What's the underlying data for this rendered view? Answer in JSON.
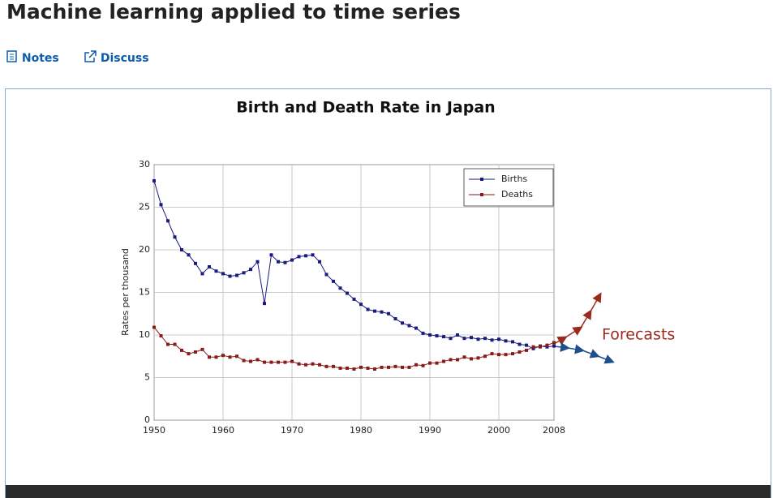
{
  "header": {
    "title": "Machine learning applied to time series",
    "links": [
      "Notes",
      "Discuss"
    ]
  },
  "chart_data": {
    "type": "line",
    "title": "Birth and Death Rate in Japan",
    "y_label": "Rates per thousand",
    "annotation": "Forecasts",
    "x": [
      1950,
      1951,
      1952,
      1953,
      1954,
      1955,
      1956,
      1957,
      1958,
      1959,
      1960,
      1961,
      1962,
      1963,
      1964,
      1965,
      1966,
      1967,
      1968,
      1969,
      1970,
      1971,
      1972,
      1973,
      1974,
      1975,
      1976,
      1977,
      1978,
      1979,
      1980,
      1981,
      1982,
      1983,
      1984,
      1985,
      1986,
      1987,
      1988,
      1989,
      1990,
      1991,
      1992,
      1993,
      1994,
      1995,
      1996,
      1997,
      1998,
      1999,
      2000,
      2001,
      2002,
      2003,
      2004,
      2005,
      2006,
      2007,
      2008
    ],
    "series": [
      {
        "name": "Births",
        "color": "#1a1a80",
        "values": [
          28.1,
          25.3,
          23.4,
          21.5,
          20.0,
          19.4,
          18.4,
          17.2,
          18.0,
          17.5,
          17.2,
          16.9,
          17.0,
          17.3,
          17.7,
          18.6,
          13.7,
          19.4,
          18.6,
          18.5,
          18.8,
          19.2,
          19.3,
          19.4,
          18.6,
          17.1,
          16.3,
          15.5,
          14.9,
          14.2,
          13.6,
          13.0,
          12.8,
          12.7,
          12.5,
          11.9,
          11.4,
          11.1,
          10.8,
          10.2,
          10.0,
          9.9,
          9.8,
          9.6,
          10.0,
          9.6,
          9.7,
          9.5,
          9.6,
          9.4,
          9.5,
          9.3,
          9.2,
          8.9,
          8.8,
          8.4,
          8.7,
          8.6,
          8.7
        ]
      },
      {
        "name": "Deaths",
        "color": "#8b1a1a",
        "values": [
          10.9,
          9.9,
          8.9,
          8.9,
          8.2,
          7.8,
          8.0,
          8.3,
          7.4,
          7.4,
          7.6,
          7.4,
          7.5,
          7.0,
          6.9,
          7.1,
          6.8,
          6.8,
          6.8,
          6.8,
          6.9,
          6.6,
          6.5,
          6.6,
          6.5,
          6.3,
          6.3,
          6.1,
          6.1,
          6.0,
          6.2,
          6.1,
          6.0,
          6.2,
          6.2,
          6.3,
          6.2,
          6.2,
          6.5,
          6.4,
          6.7,
          6.7,
          6.9,
          7.1,
          7.1,
          7.4,
          7.2,
          7.3,
          7.5,
          7.8,
          7.7,
          7.7,
          7.8,
          8.0,
          8.2,
          8.6,
          8.6,
          8.8,
          9.1
        ]
      }
    ],
    "xlim": [
      1950,
      2008
    ],
    "xticks": [
      1950,
      1960,
      1970,
      1980,
      1990,
      2000,
      2008
    ],
    "ylim": [
      0,
      30
    ],
    "yticks": [
      0,
      5,
      10,
      15,
      20,
      25,
      30
    ],
    "grid": true,
    "legend": "upper right"
  }
}
